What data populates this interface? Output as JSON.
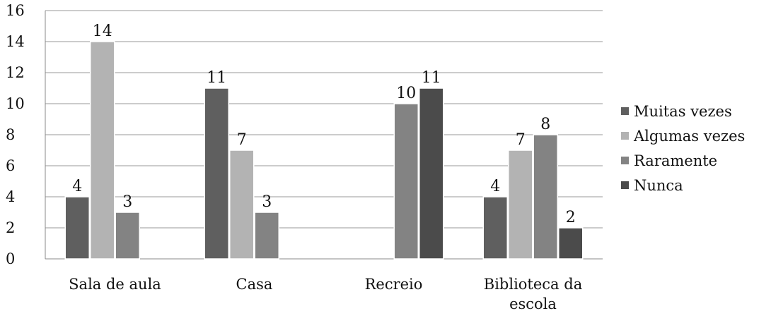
{
  "chart_data": {
    "type": "bar",
    "categories": [
      "Sala de aula",
      "Casa",
      "Recreio",
      "Biblioteca da escola"
    ],
    "category_lines": [
      [
        "Sala de aula"
      ],
      [
        "Casa"
      ],
      [
        "Recreio"
      ],
      [
        "Biblioteca da",
        "escola"
      ]
    ],
    "series": [
      {
        "name": "Muitas vezes",
        "color": "#5f5f5f",
        "values": [
          4,
          11,
          0,
          4
        ]
      },
      {
        "name": "Algumas vezes",
        "color": "#b3b3b3",
        "values": [
          14,
          7,
          0,
          7
        ]
      },
      {
        "name": "Raramente",
        "color": "#838383",
        "values": [
          3,
          3,
          10,
          8
        ]
      },
      {
        "name": "Nunca",
        "color": "#4b4b4b",
        "values": [
          0,
          0,
          11,
          2
        ]
      }
    ],
    "ylim": [
      0,
      16
    ],
    "yticks": [
      0,
      2,
      4,
      6,
      8,
      10,
      12,
      14,
      16
    ],
    "grid": true,
    "legend_position": "right",
    "title": "",
    "xlabel": "",
    "ylabel": ""
  }
}
